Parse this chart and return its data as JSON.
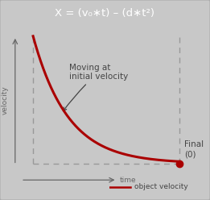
{
  "title_text": "X = (v₀∗t) – (d∗t²)",
  "title_bg": "#6e6e6e",
  "title_color": "#ffffff",
  "outer_bg": "#c8c8c8",
  "inner_bg": "#e2e2e2",
  "curve_color": "#aa0000",
  "dashed_color": "#999999",
  "text_color": "#444444",
  "arrow_color": "#666666",
  "legend_line_color": "#aa0000",
  "annotation_text": "Moving at\ninitial velocity",
  "legend_label": "object velocity",
  "final_label": "Final\n(0)",
  "xlabel": "time",
  "ylabel": "velocity"
}
